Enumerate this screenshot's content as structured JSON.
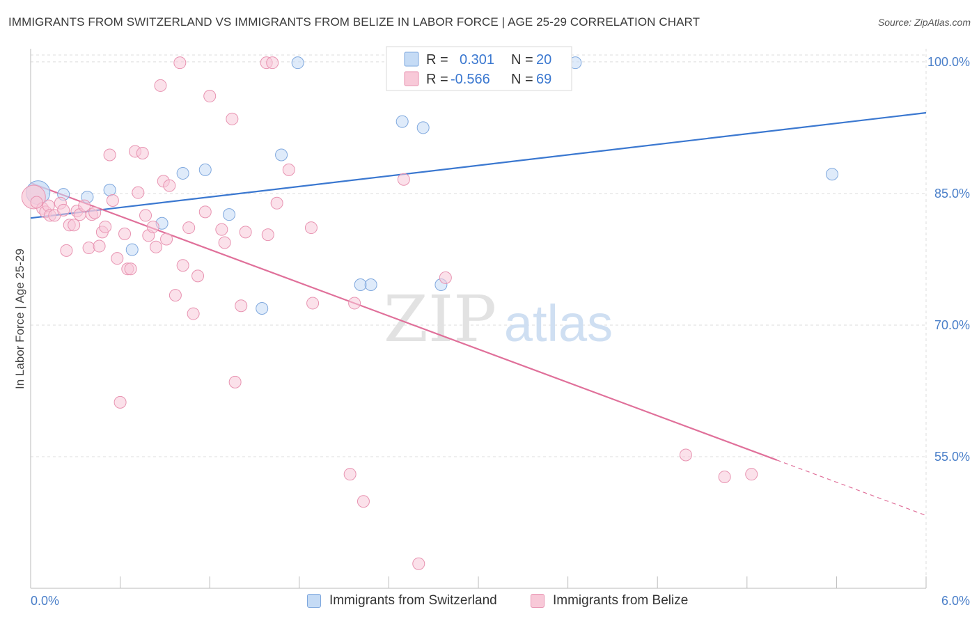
{
  "title": "IMMIGRANTS FROM SWITZERLAND VS IMMIGRANTS FROM BELIZE IN LABOR FORCE | AGE 25-29 CORRELATION CHART",
  "source": "Source: ZipAtlas.com",
  "watermark": {
    "zip": "ZIP",
    "atlas": "atlas"
  },
  "colors": {
    "blue": "#3b78d0",
    "blue_fill": "#c5dbf5",
    "pink": "#e0709a",
    "pink_fill": "#f8c9d8",
    "tick": "#4a7fc9"
  },
  "legend": {
    "r_label": "R =",
    "n_label": "N =",
    "rows": [
      {
        "series": "Immigrants from Switzerland",
        "r": "0.301",
        "n": "20"
      },
      {
        "series": "Immigrants from Belize",
        "r": "-0.566",
        "n": "69"
      }
    ]
  },
  "bottom_legend": [
    "Immigrants from Switzerland",
    "Immigrants from Belize"
  ],
  "chart_data": {
    "type": "scatter",
    "ylabel": "In Labor Force | Age 25-29",
    "xlim": [
      0,
      6
    ],
    "ylim": [
      40,
      101.5
    ],
    "x_tick_labels": [
      "0.0%",
      "6.0%"
    ],
    "y_ticks": [
      {
        "value": 100,
        "label": "100.0%"
      },
      {
        "value": 85,
        "label": "85.0%"
      },
      {
        "value": 70,
        "label": "70.0%"
      },
      {
        "value": 55,
        "label": "55.0%"
      }
    ],
    "grid": true,
    "series": [
      {
        "name": "Immigrants from Switzerland",
        "color": "#3b78d0",
        "trend": {
          "x": [
            0,
            6
          ],
          "y": [
            82.2,
            94.2
          ],
          "solid_until": 6
        },
        "points": [
          [
            0.05,
            85.1,
            "large"
          ],
          [
            0.22,
            84.9
          ],
          [
            0.38,
            84.6
          ],
          [
            0.53,
            85.4
          ],
          [
            0.68,
            78.6
          ],
          [
            0.88,
            81.6
          ],
          [
            1.02,
            87.3
          ],
          [
            1.17,
            87.7
          ],
          [
            1.33,
            82.6
          ],
          [
            1.55,
            71.9
          ],
          [
            1.68,
            89.4
          ],
          [
            1.79,
            99.9
          ],
          [
            2.21,
            74.6
          ],
          [
            2.28,
            74.6
          ],
          [
            2.49,
            93.2
          ],
          [
            2.63,
            92.5
          ],
          [
            2.75,
            74.6
          ],
          [
            3.5,
            99.9
          ],
          [
            3.65,
            99.9
          ],
          [
            5.37,
            87.2
          ]
        ]
      },
      {
        "name": "Immigrants from Belize",
        "color": "#e0709a",
        "trend": {
          "x": [
            0,
            6
          ],
          "y": [
            86.2,
            48.3
          ],
          "solid_until": 5.0
        },
        "points": [
          [
            0.02,
            84.6,
            "large"
          ],
          [
            0.08,
            83.3
          ],
          [
            0.1,
            82.9
          ],
          [
            0.12,
            83.6
          ],
          [
            0.13,
            82.5
          ],
          [
            0.16,
            82.5
          ],
          [
            0.2,
            83.9
          ],
          [
            0.22,
            83.1
          ],
          [
            0.24,
            78.5
          ],
          [
            0.26,
            81.4
          ],
          [
            0.29,
            81.4
          ],
          [
            0.31,
            83.0
          ],
          [
            0.33,
            82.6
          ],
          [
            0.36,
            83.6
          ],
          [
            0.39,
            78.8
          ],
          [
            0.41,
            82.6
          ],
          [
            0.43,
            82.8
          ],
          [
            0.46,
            79.0
          ],
          [
            0.48,
            80.6
          ],
          [
            0.5,
            81.2
          ],
          [
            0.53,
            89.4
          ],
          [
            0.55,
            84.2
          ],
          [
            0.58,
            77.6
          ],
          [
            0.6,
            61.2
          ],
          [
            0.63,
            80.4
          ],
          [
            0.65,
            76.4
          ],
          [
            0.67,
            76.4
          ],
          [
            0.7,
            89.8
          ],
          [
            0.72,
            85.1
          ],
          [
            0.75,
            89.6
          ],
          [
            0.77,
            82.5
          ],
          [
            0.79,
            80.2
          ],
          [
            0.82,
            81.2
          ],
          [
            0.84,
            78.9
          ],
          [
            0.87,
            97.3
          ],
          [
            0.89,
            86.4
          ],
          [
            0.91,
            79.8
          ],
          [
            0.93,
            85.9
          ],
          [
            0.97,
            73.4
          ],
          [
            1.0,
            99.9
          ],
          [
            1.02,
            76.8
          ],
          [
            1.06,
            81.1
          ],
          [
            1.09,
            71.3
          ],
          [
            1.12,
            75.6
          ],
          [
            1.17,
            82.9
          ],
          [
            1.2,
            96.1
          ],
          [
            1.28,
            80.9
          ],
          [
            1.3,
            79.4
          ],
          [
            1.35,
            93.5
          ],
          [
            1.37,
            63.5
          ],
          [
            1.41,
            72.2
          ],
          [
            1.44,
            80.6
          ],
          [
            1.58,
            99.9
          ],
          [
            1.59,
            80.3
          ],
          [
            1.62,
            99.9
          ],
          [
            1.65,
            83.9
          ],
          [
            1.73,
            87.7
          ],
          [
            1.88,
            81.1
          ],
          [
            1.89,
            72.5
          ],
          [
            2.14,
            53.0
          ],
          [
            2.17,
            72.5
          ],
          [
            2.23,
            49.9
          ],
          [
            2.5,
            86.6
          ],
          [
            2.6,
            42.8
          ],
          [
            2.78,
            75.4
          ],
          [
            4.39,
            55.2
          ],
          [
            4.65,
            52.7
          ],
          [
            4.83,
            53.0
          ],
          [
            0.04,
            84.0
          ]
        ]
      }
    ]
  }
}
